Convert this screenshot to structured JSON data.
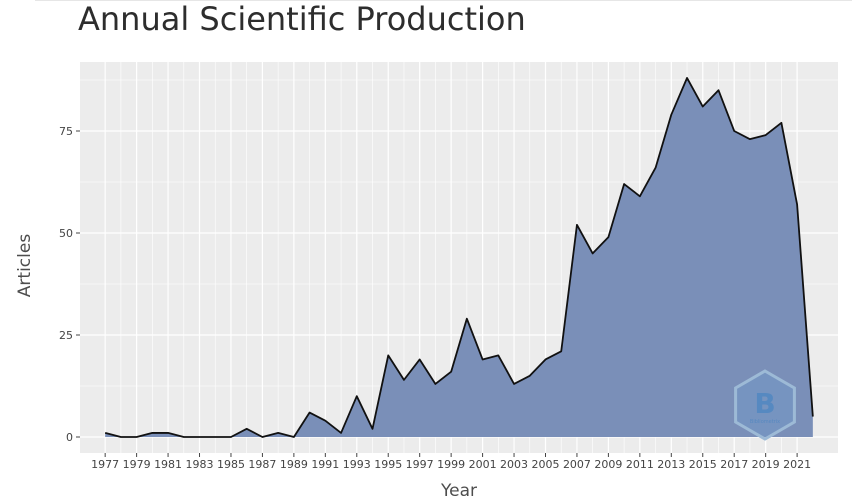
{
  "chart_data": {
    "type": "area",
    "title": "Annual Scientific Production",
    "xlabel": "Year",
    "ylabel": "Articles",
    "x": [
      1977,
      1978,
      1979,
      1980,
      1981,
      1982,
      1983,
      1984,
      1985,
      1986,
      1987,
      1988,
      1989,
      1990,
      1991,
      1992,
      1993,
      1994,
      1995,
      1996,
      1997,
      1998,
      1999,
      2000,
      2001,
      2002,
      2003,
      2004,
      2005,
      2006,
      2007,
      2008,
      2009,
      2010,
      2011,
      2012,
      2013,
      2014,
      2015,
      2016,
      2017,
      2018,
      2019,
      2020,
      2021,
      2022
    ],
    "y": [
      1,
      0,
      0,
      1,
      1,
      0,
      0,
      0,
      0,
      2,
      0,
      1,
      0,
      6,
      4,
      1,
      10,
      2,
      20,
      14,
      19,
      13,
      16,
      29,
      19,
      20,
      13,
      15,
      19,
      21,
      52,
      45,
      49,
      62,
      59,
      66,
      79,
      88,
      81,
      85,
      75,
      73,
      74,
      77,
      57,
      5
    ],
    "x_tick_labels": [
      "1977",
      "1979",
      "1981",
      "1983",
      "1985",
      "1987",
      "1989",
      "1991",
      "1993",
      "1995",
      "1997",
      "1999",
      "2001",
      "2003",
      "2005",
      "2007",
      "2009",
      "2011",
      "2013",
      "2015",
      "2017",
      "2019",
      "2021"
    ],
    "y_ticks": [
      0,
      25,
      50,
      75
    ],
    "xlim": [
      1977,
      2022
    ],
    "ylim": [
      -5,
      93
    ],
    "grid": true,
    "fill_color": "#7a8fb8",
    "line_color": "#111111",
    "panel_background": "#ececec",
    "grid_color": "#ffffff"
  },
  "watermark": {
    "glyph": "B",
    "text": "Bibliometrix"
  }
}
